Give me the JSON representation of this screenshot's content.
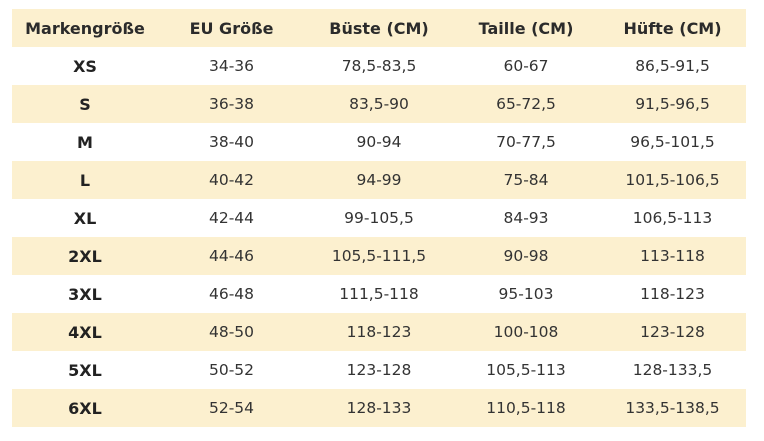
{
  "colors": {
    "stripe": "#fcf0cf",
    "plain": "#ffffff"
  },
  "headers": [
    "Markengröße",
    "EU Größe",
    "Büste (CM)",
    "Taille (CM)",
    "Hüfte (CM)"
  ],
  "rows": [
    [
      "XS",
      "34-36",
      "78,5-83,5",
      "60-67",
      "86,5-91,5"
    ],
    [
      "S",
      "36-38",
      "83,5-90",
      "65-72,5",
      "91,5-96,5"
    ],
    [
      "M",
      "38-40",
      "90-94",
      "70-77,5",
      "96,5-101,5"
    ],
    [
      "L",
      "40-42",
      "94-99",
      "75-84",
      "101,5-106,5"
    ],
    [
      "XL",
      "42-44",
      "99-105,5",
      "84-93",
      "106,5-113"
    ],
    [
      "2XL",
      "44-46",
      "105,5-111,5",
      "90-98",
      "113-118"
    ],
    [
      "3XL",
      "46-48",
      "111,5-118",
      "95-103",
      "118-123"
    ],
    [
      "4XL",
      "48-50",
      "118-123",
      "100-108",
      "123-128"
    ],
    [
      "5XL",
      "50-52",
      "123-128",
      "105,5-113",
      "128-133,5"
    ],
    [
      "6XL",
      "52-54",
      "128-133",
      "110,5-118",
      "133,5-138,5"
    ]
  ]
}
